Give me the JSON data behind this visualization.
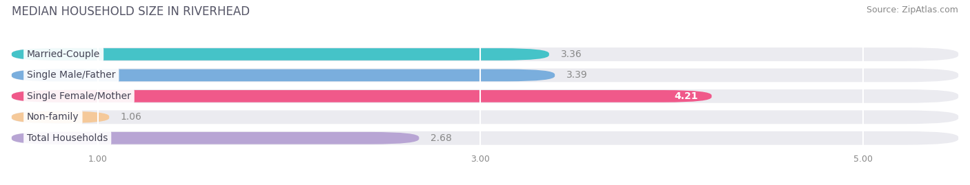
{
  "title": "MEDIAN HOUSEHOLD SIZE IN RIVERHEAD",
  "source": "Source: ZipAtlas.com",
  "categories": [
    "Married-Couple",
    "Single Male/Father",
    "Single Female/Mother",
    "Non-family",
    "Total Households"
  ],
  "values": [
    3.36,
    3.39,
    4.21,
    1.06,
    2.68
  ],
  "bar_colors": [
    "#45c3c8",
    "#7aaedd",
    "#f0598a",
    "#f5c99a",
    "#b8a5d4"
  ],
  "bar_bg_color": "#ebebf0",
  "value_on_bar": [
    false,
    false,
    true,
    false,
    false
  ],
  "value_colors_on": [
    "white"
  ],
  "value_colors_off": "#888888",
  "xlim_min": 0.55,
  "xlim_max": 5.5,
  "xticks": [
    1.0,
    3.0,
    5.0
  ],
  "xtick_labels": [
    "1.00",
    "3.00",
    "5.00"
  ],
  "background_color": "#ffffff",
  "title_color": "#555566",
  "source_color": "#888888",
  "title_fontsize": 12,
  "source_fontsize": 9,
  "label_fontsize": 10,
  "value_fontsize": 10
}
